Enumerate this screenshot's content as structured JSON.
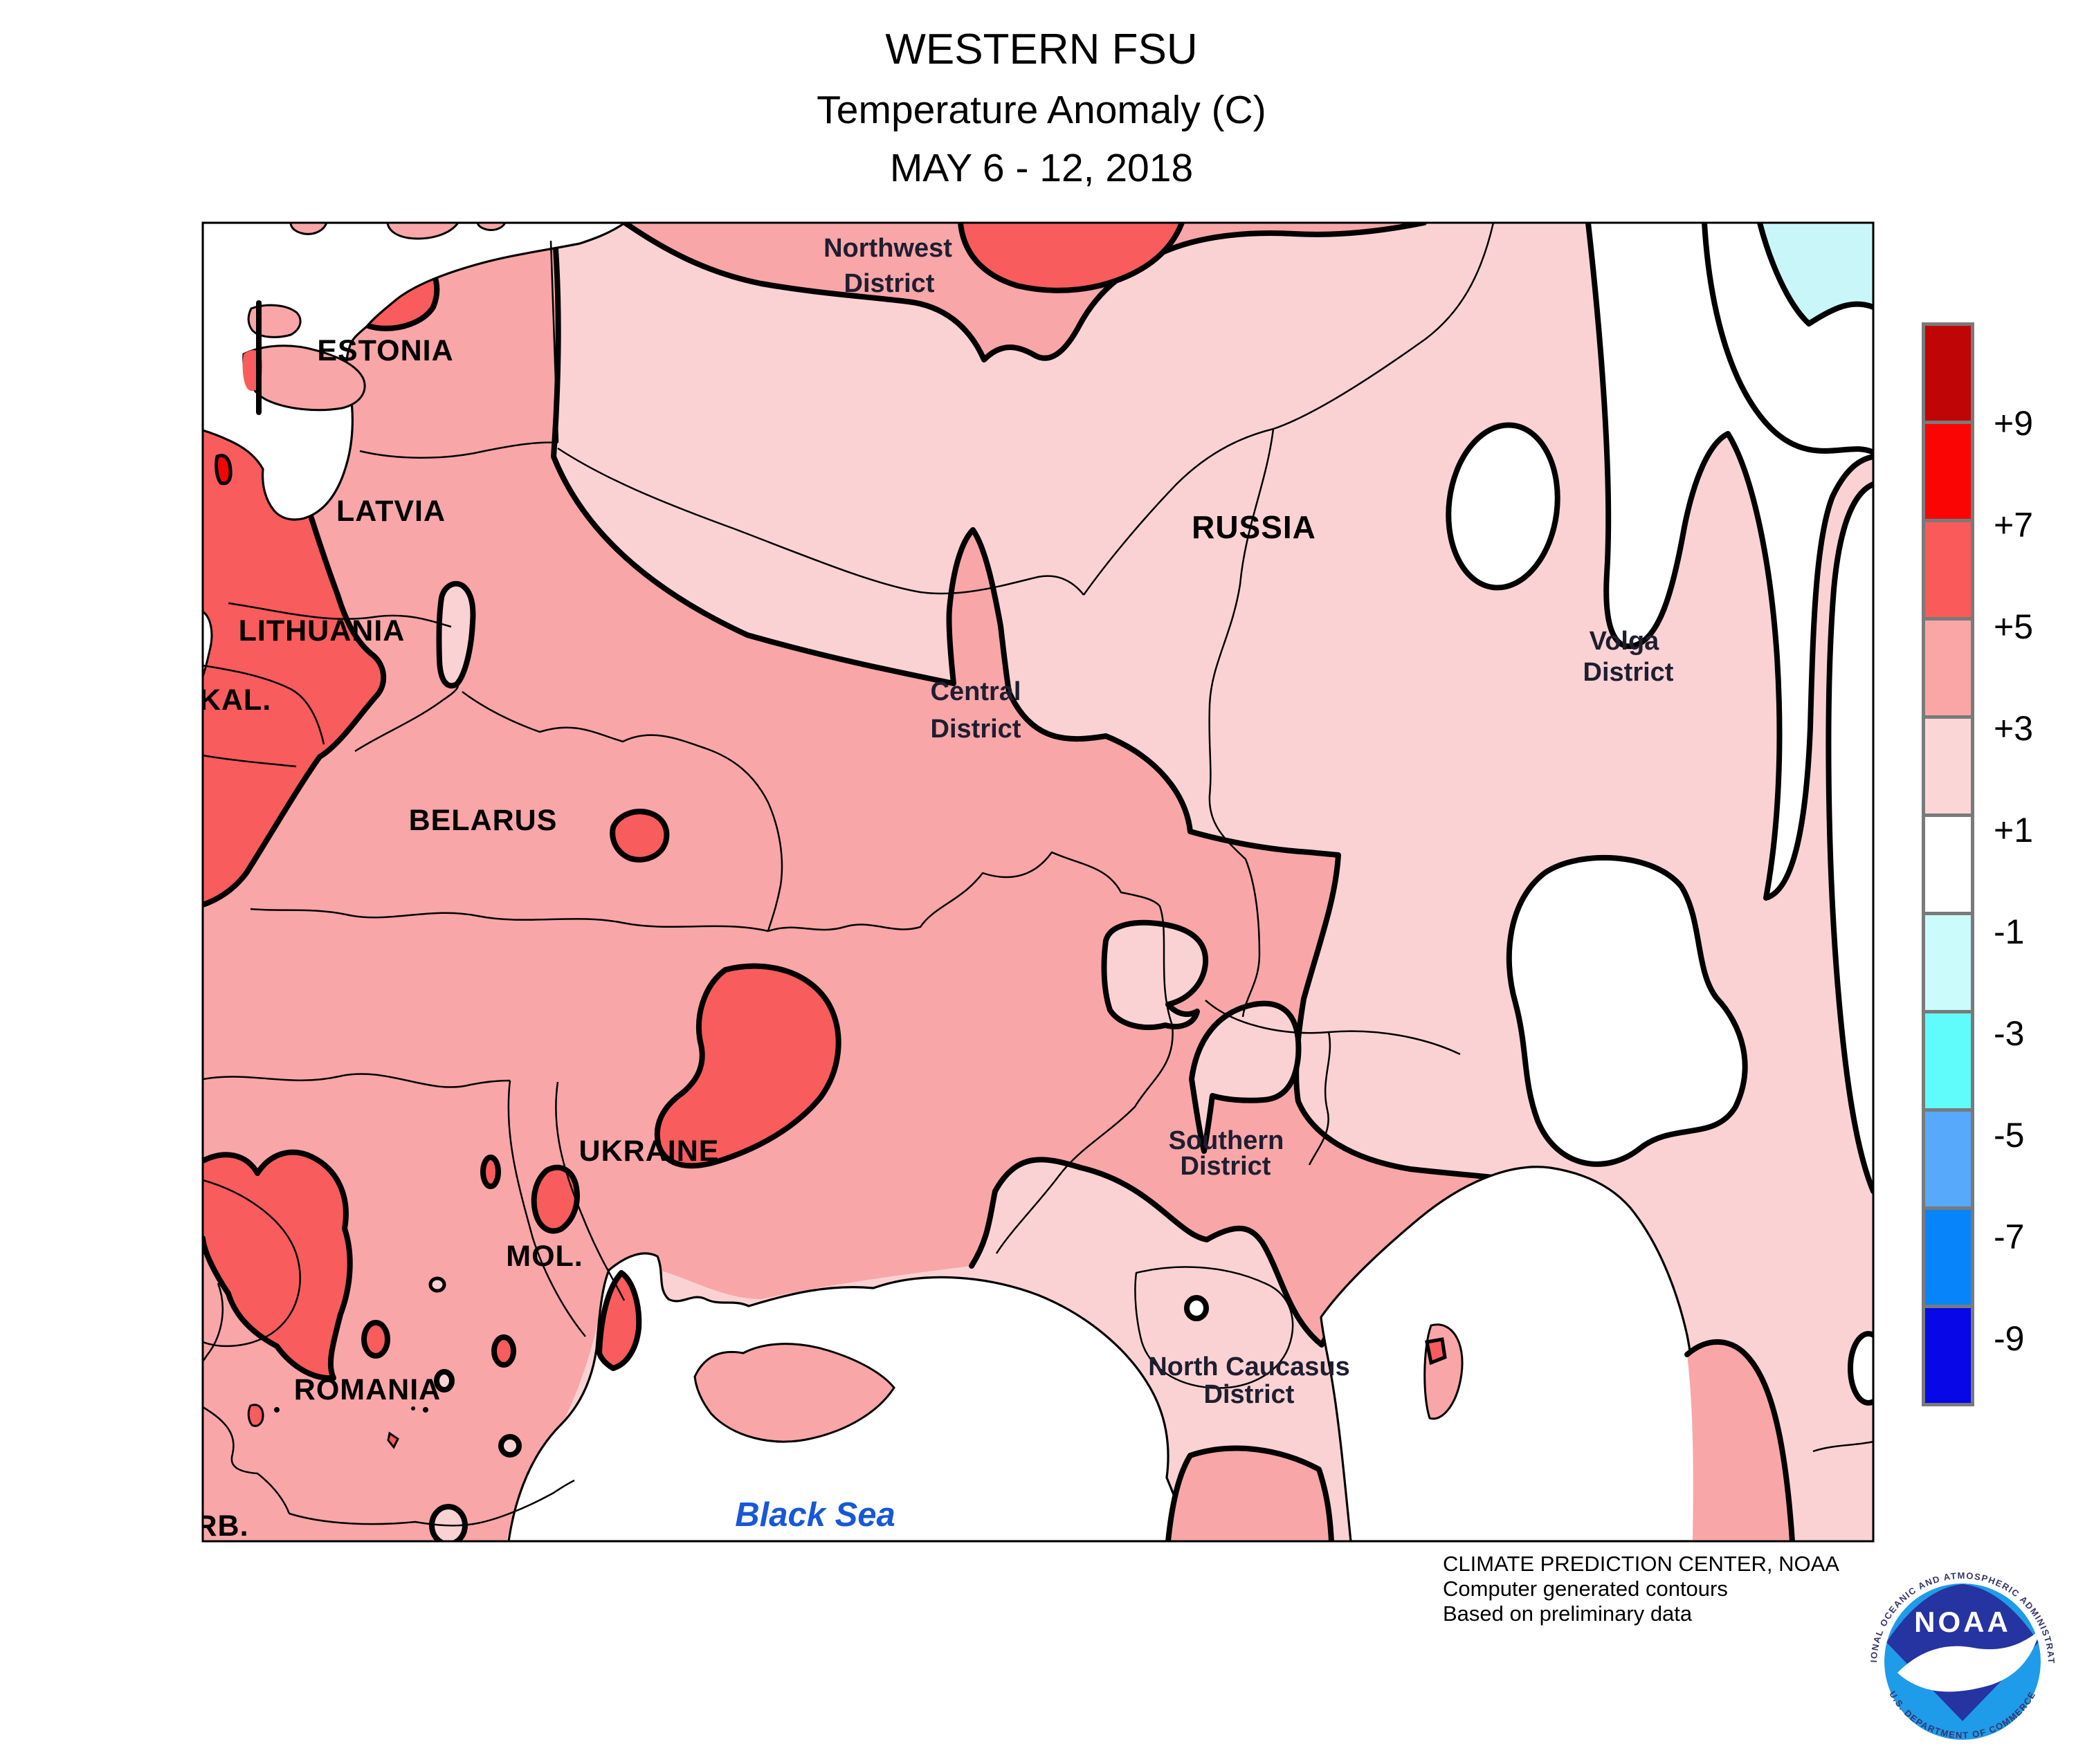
{
  "title": {
    "line1": "WESTERN FSU",
    "line2": "Temperature Anomaly (C)",
    "line3": "MAY 6 - 12, 2018"
  },
  "map_labels": {
    "countries": {
      "estonia": "ESTONIA",
      "latvia": "LATVIA",
      "lithuania": "LITHUANIA",
      "kaliningrad": "KAL.",
      "belarus": "BELARUS",
      "ukraine": "UKRAINE",
      "moldova": "MOL.",
      "romania": "ROMANIA",
      "serbia": "RB.",
      "russia": "RUSSIA"
    },
    "districts": {
      "northwest": {
        "line1": "Northwest",
        "line2": "District"
      },
      "central": {
        "line1": "Central",
        "line2": "District"
      },
      "volga": {
        "line1": "Volga",
        "line2": "District"
      },
      "southern": {
        "line1": "Southern",
        "line2": "District"
      },
      "north_caucasus": {
        "line1": "North Caucasus",
        "line2": "District"
      }
    },
    "water": {
      "black_sea": "Black Sea"
    }
  },
  "legend": {
    "values": [
      "+9",
      "+7",
      "+5",
      "+3",
      "+1",
      "-1",
      "-3",
      "-5",
      "-7",
      "-9"
    ],
    "colors": [
      "#C00506",
      "#FB0404",
      "#FB5A5A",
      "#FBA6A6",
      "#FBD6D6",
      "#FFFFFF",
      "#CBFBFB",
      "#60FCFC",
      "#57A9FB",
      "#0884FB",
      "#0707E8"
    ]
  },
  "credits": {
    "line1": "CLIMATE PREDICTION CENTER, NOAA",
    "line2": "Computer generated contours",
    "line3": "Based on preliminary data"
  },
  "logo": {
    "acronym": "NOAA",
    "top_text": "NATIONAL OCEANIC AND ATMOSPHERIC ADMINISTRATION",
    "bottom_text": "U.S. DEPARTMENT OF COMMERCE"
  },
  "colors": {
    "map-lightpink": "#FBD2D4",
    "map-pink": "#F9A6A8",
    "map-salmon": "#F85C5C",
    "map-red": "#F40505",
    "map-palecyan": "#C9F7F9",
    "district-label": "#1E1E30",
    "sea-label-blue": "#1758D8",
    "legend-border": "#7A7A7A",
    "logo-dark-blue": "#2534A0",
    "logo-light-blue": "#1E9BE9"
  }
}
